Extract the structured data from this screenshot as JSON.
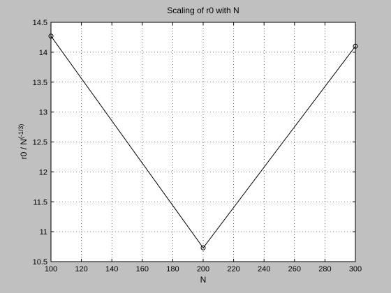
{
  "chart_data": {
    "type": "line",
    "title": "Scaling of r0 with N",
    "xlabel": "N",
    "ylabel": {
      "base": "r0 / N",
      "superscript": "(-1/3)"
    },
    "x": [
      100,
      200,
      300
    ],
    "series": [
      {
        "values": [
          14.27,
          10.73,
          14.1
        ]
      }
    ],
    "xlim": [
      100,
      300
    ],
    "ylim": [
      10.5,
      14.5
    ],
    "xticks": [
      100,
      120,
      140,
      160,
      180,
      200,
      220,
      240,
      260,
      280,
      300
    ],
    "yticks": [
      10.5,
      11,
      11.5,
      12,
      12.5,
      13,
      13.5,
      14,
      14.5
    ],
    "grid": true,
    "marker": "circle",
    "colors": {
      "figure_bg": "#c0c0c0",
      "axes_bg": "#ffffff",
      "line": "#000000"
    }
  }
}
